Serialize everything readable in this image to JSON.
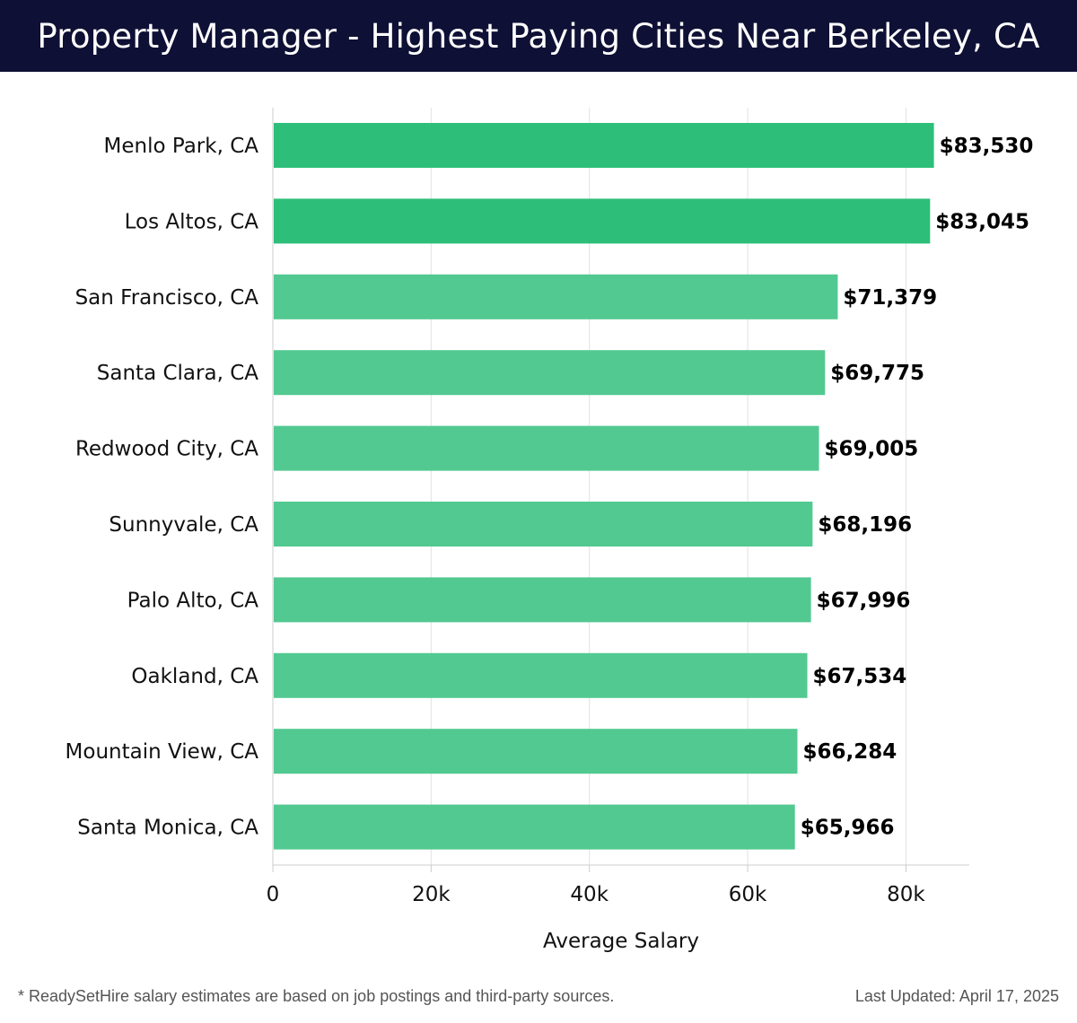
{
  "header": {
    "title": "Property Manager - Highest Paying Cities Near Berkeley, CA"
  },
  "footer": {
    "note": "* ReadySetHire salary estimates are based on job postings and third-party sources.",
    "updated": "Last Updated: April 17, 2025"
  },
  "colors": {
    "header_bg": "#0f1035",
    "bar_top": "#2dbf7a",
    "bar_rest": "#52c991",
    "grid": "#e2e2e2",
    "axis": "#cccccc",
    "label": "#111111"
  },
  "chart_data": {
    "type": "bar",
    "orientation": "horizontal",
    "xlabel": "Average Salary",
    "ylabel": "",
    "xlim": [
      0,
      88000
    ],
    "xticks": [
      0,
      20000,
      40000,
      60000,
      80000
    ],
    "xtick_labels": [
      "0",
      "20k",
      "40k",
      "60k",
      "80k"
    ],
    "grid": "vertical",
    "categories": [
      "Menlo Park, CA",
      "Los Altos, CA",
      "San Francisco, CA",
      "Santa Clara, CA",
      "Redwood City, CA",
      "Sunnyvale, CA",
      "Palo Alto, CA",
      "Oakland, CA",
      "Mountain View, CA",
      "Santa Monica, CA"
    ],
    "values": [
      83530,
      83045,
      71379,
      69775,
      69005,
      68196,
      67996,
      67534,
      66284,
      65966
    ],
    "value_labels": [
      "$83,530",
      "$83,045",
      "$71,379",
      "$69,775",
      "$69,005",
      "$68,196",
      "$67,996",
      "$67,534",
      "$66,284",
      "$65,966"
    ]
  }
}
